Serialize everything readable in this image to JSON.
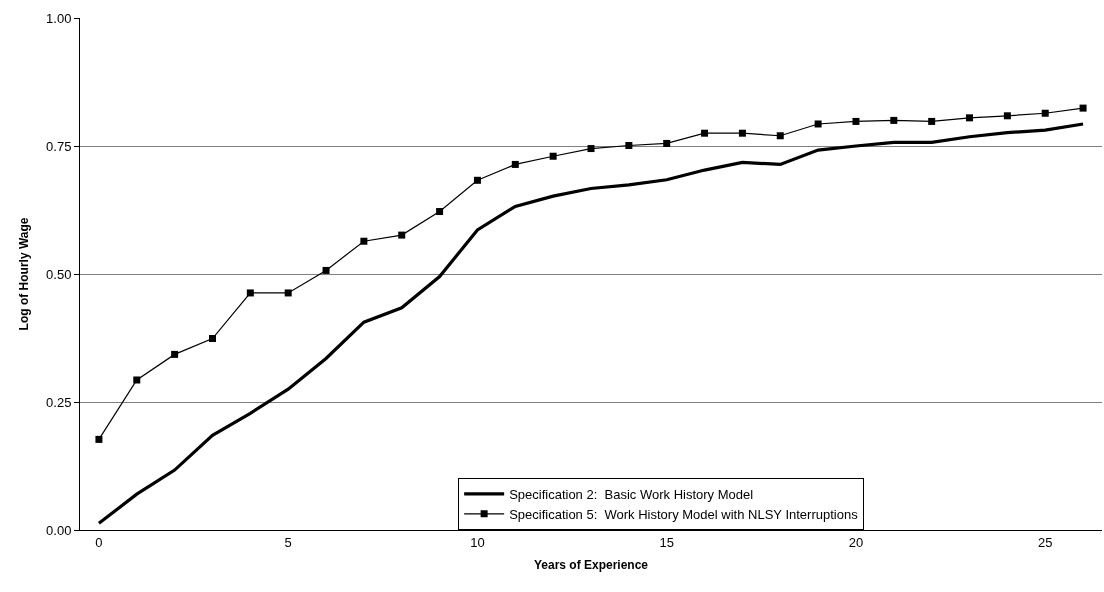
{
  "chart_data": {
    "type": "line",
    "xlabel": "Years of Experience",
    "ylabel": "Log of Hourly Wage",
    "categories": [
      "0",
      null,
      null,
      null,
      null,
      "5",
      null,
      null,
      null,
      null,
      "10",
      null,
      null,
      null,
      null,
      "15",
      null,
      null,
      null,
      null,
      "20",
      null,
      null,
      null,
      null,
      "25",
      null
    ],
    "series": [
      {
        "name": "Specification 2:  Basic Work History Model",
        "color": "#000000",
        "marker": "none",
        "values": [
          0.013,
          0.07,
          0.117,
          0.185,
          0.228,
          0.275,
          0.335,
          0.406,
          0.434,
          0.495,
          0.586,
          0.632,
          0.652,
          0.667,
          0.674,
          0.684,
          0.703,
          0.718,
          0.714,
          0.742,
          0.75,
          0.757,
          0.757,
          0.768,
          0.776,
          0.781,
          0.793
        ]
      },
      {
        "name": "Specification 5:  Work History Model with NLSY Interruptions",
        "color": "#000000",
        "marker": "square",
        "values": [
          0.177,
          0.293,
          0.343,
          0.374,
          0.463,
          0.463,
          0.507,
          0.564,
          0.576,
          0.622,
          0.683,
          0.714,
          0.73,
          0.745,
          0.751,
          0.755,
          0.775,
          0.775,
          0.77,
          0.793,
          0.798,
          0.8,
          0.798,
          0.805,
          0.809,
          0.814,
          0.824
        ]
      }
    ],
    "ylim": [
      0,
      1
    ],
    "yticks": [
      {
        "value": 0,
        "label": "0.00"
      },
      {
        "value": 0.25,
        "label": "0.25"
      },
      {
        "value": 0.5,
        "label": "0.50"
      },
      {
        "value": 0.75,
        "label": "0.75"
      },
      {
        "value": 1,
        "label": "1.00"
      }
    ],
    "grid": "y",
    "legend": "bottom right",
    "line_style": "solid"
  }
}
